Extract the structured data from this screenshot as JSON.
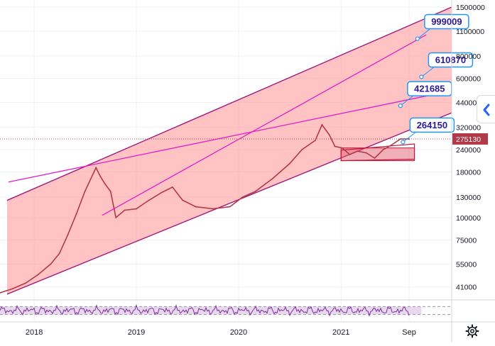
{
  "chart_data": {
    "type": "line",
    "title": "",
    "xlabel": "",
    "ylabel": "",
    "y_scale": "log",
    "ylim": [
      35000,
      1500000
    ],
    "xlim": [
      "2017-09-01",
      "2022-01-31"
    ],
    "grid": true,
    "x_ticks": [
      {
        "label": "2018",
        "date": "2018-01-01"
      },
      {
        "label": "2019",
        "date": "2019-01-01"
      },
      {
        "label": "2020",
        "date": "2020-01-01"
      },
      {
        "label": "2021",
        "date": "2021-01-01"
      },
      {
        "label": "Sep",
        "date": "2021-09-01"
      }
    ],
    "y_ticks": [
      {
        "label": "1500000",
        "value": 1500000
      },
      {
        "label": "1100000",
        "value": 1100000
      },
      {
        "label": "800000",
        "value": 800000
      },
      {
        "label": "600000",
        "value": 600000
      },
      {
        "label": "440000",
        "value": 440000
      },
      {
        "label": "320000",
        "value": 320000
      },
      {
        "label": "240000",
        "value": 240000
      },
      {
        "label": "180000",
        "value": 180000
      },
      {
        "label": "130000",
        "value": 130000
      },
      {
        "label": "100000",
        "value": 100000
      },
      {
        "label": "75000",
        "value": 75000
      },
      {
        "label": "55000",
        "value": 55000
      },
      {
        "label": "41000",
        "value": 41000
      }
    ],
    "current_price": {
      "label": "275130",
      "value": 275130,
      "color": "#b23a48"
    },
    "series": [
      {
        "color": "#b23a48",
        "points": [
          [
            "2017-09-01",
            38000
          ],
          [
            "2017-10-15",
            40000
          ],
          [
            "2017-12-01",
            43000
          ],
          [
            "2018-01-15",
            48000
          ],
          [
            "2018-03-01",
            55000
          ],
          [
            "2018-04-01",
            63000
          ],
          [
            "2018-05-01",
            80000
          ],
          [
            "2018-06-01",
            105000
          ],
          [
            "2018-07-01",
            140000
          ],
          [
            "2018-08-10",
            190000
          ],
          [
            "2018-08-25",
            170000
          ],
          [
            "2018-09-10",
            155000
          ],
          [
            "2018-10-01",
            140000
          ],
          [
            "2018-10-20",
            100000
          ],
          [
            "2018-11-20",
            110000
          ],
          [
            "2019-01-01",
            112000
          ],
          [
            "2019-02-15",
            125000
          ],
          [
            "2019-04-01",
            138000
          ],
          [
            "2019-05-10",
            148000
          ],
          [
            "2019-06-15",
            125000
          ],
          [
            "2019-08-01",
            115000
          ],
          [
            "2019-10-01",
            112000
          ],
          [
            "2019-12-01",
            115000
          ],
          [
            "2020-01-15",
            130000
          ],
          [
            "2020-03-01",
            140000
          ],
          [
            "2020-05-01",
            165000
          ],
          [
            "2020-07-01",
            200000
          ],
          [
            "2020-08-15",
            240000
          ],
          [
            "2020-10-01",
            270000
          ],
          [
            "2020-10-25",
            330000
          ],
          [
            "2020-11-20",
            290000
          ],
          [
            "2020-12-10",
            250000
          ],
          [
            "2021-01-05",
            245000
          ],
          [
            "2021-02-01",
            225000
          ],
          [
            "2021-03-01",
            235000
          ],
          [
            "2021-04-01",
            230000
          ],
          [
            "2021-05-01",
            215000
          ],
          [
            "2021-06-01",
            240000
          ],
          [
            "2021-07-01",
            255000
          ],
          [
            "2021-08-01",
            275000
          ],
          [
            "2021-09-01",
            275130
          ]
        ]
      }
    ],
    "channel": {
      "band_color": "#ff9e9e",
      "band_opacity": 0.62,
      "line_color": "#a01a7d",
      "upper": [
        [
          "2017-09-01",
          120000
        ],
        [
          "2022-01-31",
          1500000
        ]
      ],
      "lower": [
        [
          "2017-09-01",
          36000
        ],
        [
          "2022-01-31",
          385000
        ]
      ]
    },
    "trendlines": [
      {
        "color": "#e020c8",
        "from": [
          "2017-10-01",
          158000
        ],
        "to": [
          "2022-01-01",
          500000
        ]
      },
      {
        "color": "#e020c8",
        "from": [
          "2018-09-01",
          103000
        ],
        "to": [
          "2021-11-01",
          1050000
        ]
      }
    ],
    "rectangle": {
      "color": "#e05060",
      "from": [
        "2021-01-01",
        245000
      ],
      "to": [
        "2021-09-20",
        208000
      ]
    },
    "consolidation": {
      "color": "#c0143c",
      "points": [
        [
          "2021-01-01",
          238000
        ],
        [
          "2021-09-20",
          258000
        ],
        [
          "2021-09-20",
          212000
        ],
        [
          "2021-01-01",
          208000
        ]
      ]
    },
    "annotations": [
      {
        "label": "999009",
        "value": 999009,
        "anchor": [
          "2021-10-01",
          999009
        ]
      },
      {
        "label": "610870",
        "value": 610870,
        "anchor": [
          "2021-10-15",
          610870
        ]
      },
      {
        "label": "421685",
        "value": 421685,
        "anchor": [
          "2021-08-01",
          421685
        ]
      },
      {
        "label": "264150",
        "value": 264150,
        "anchor": [
          "2021-08-10",
          264150
        ]
      }
    ],
    "rsi": {
      "band_color": "#e8d8ee",
      "line_color": "#7c2f9a",
      "levels": [
        70,
        30
      ]
    }
  }
}
